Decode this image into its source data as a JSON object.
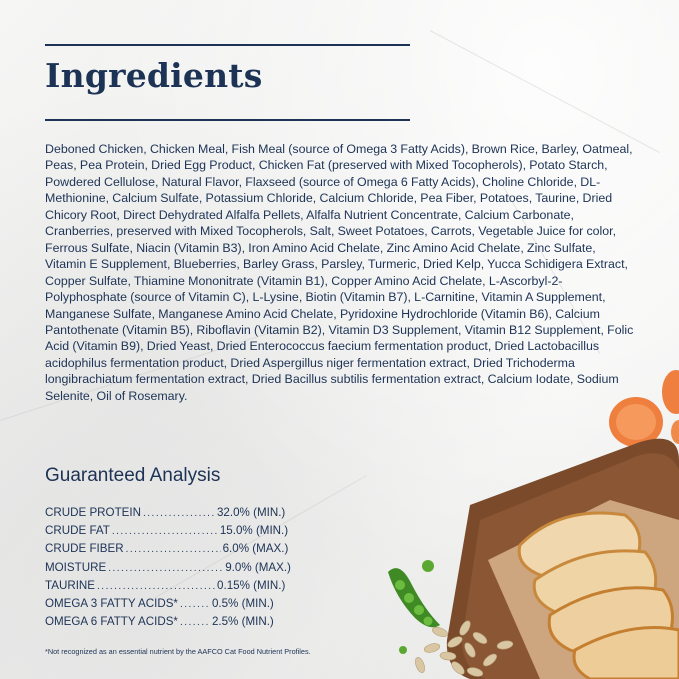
{
  "title": "Ingredients",
  "ingredients_text": "Deboned Chicken, Chicken Meal, Fish Meal (source of Omega 3 Fatty Acids), Brown Rice, Barley, Oatmeal, Peas, Pea Protein, Dried Egg Product, Chicken Fat (preserved with Mixed Tocopherols), Potato Starch, Powdered Cellulose, Natural Flavor, Flaxseed (source of Omega 6 Fatty Acids), Choline Chloride, DL-Methionine, Calcium Sulfate, Potassium Chloride, Calcium Chloride, Pea Fiber, Potatoes, Taurine, Dried Chicory Root, Direct Dehydrated Alfalfa Pellets, Alfalfa Nutrient Concentrate, Calcium Carbonate, Cranberries, preserved with Mixed Tocopherols, Salt, Sweet Potatoes, Carrots, Vegetable Juice for color, Ferrous Sulfate, Niacin (Vitamin B3), Iron Amino Acid Chelate, Zinc Amino Acid Chelate, Zinc Sulfate, Vitamin E Supplement, Blueberries, Barley Grass, Parsley, Turmeric, Dried Kelp, Yucca Schidigera Extract, Copper Sulfate, Thiamine Mononitrate (Vitamin B1), Copper Amino Acid Chelate, L-Ascorbyl-2-Polyphosphate (source of Vitamin C), L-Lysine, Biotin (Vitamin B7), L-Carnitine, Vitamin A Supplement, Manganese Sulfate, Manganese Amino Acid Chelate, Pyridoxine Hydrochloride (Vitamin B6), Calcium Pantothenate (Vitamin B5), Riboflavin (Vitamin B2), Vitamin D3 Supplement, Vitamin B12 Supplement, Folic Acid (Vitamin B9), Dried Yeast, Dried Enterococcus faecium fermentation product, Dried Lactobacillus acidophilus fermentation product, Dried Aspergillus niger fermentation extract, Dried Trichoderma longibrachiatum fermentation extract, Dried Bacillus subtilis fermentation extract, Calcium Iodate, Sodium Selenite, Oil of Rosemary.",
  "guaranteed_analysis": {
    "title": "Guaranteed Analysis",
    "rows": [
      {
        "name": "CRUDE PROTEIN",
        "value": "32.0% (MIN.)"
      },
      {
        "name": "CRUDE FAT",
        "value": "15.0% (MIN.)"
      },
      {
        "name": "CRUDE FIBER",
        "value": "6.0% (MAX.)"
      },
      {
        "name": "MOISTURE",
        "value": "9.0% (MAX.)"
      },
      {
        "name": "TAURINE",
        "value": "0.15% (MIN.)"
      },
      {
        "name": "OMEGA 3 FATTY ACIDS*",
        "value": "0.5% (MIN.)"
      },
      {
        "name": "OMEGA 6 FATTY ACIDS*",
        "value": "2.5% (MIN.)"
      }
    ]
  },
  "footnote": "*Not recognized as an essential nutrient by the AAFCO Cat Food Nutrient Profiles.",
  "colors": {
    "text": "#1d3355",
    "board": "#7a4a2a",
    "chicken": "#e8c089",
    "carrot": "#f08a4b",
    "pea": "#4f9a2e",
    "background": "#f1f1f0"
  },
  "icons": [
    "chicken-board-illustration",
    "carrot-slices",
    "pea-pod",
    "oats"
  ]
}
